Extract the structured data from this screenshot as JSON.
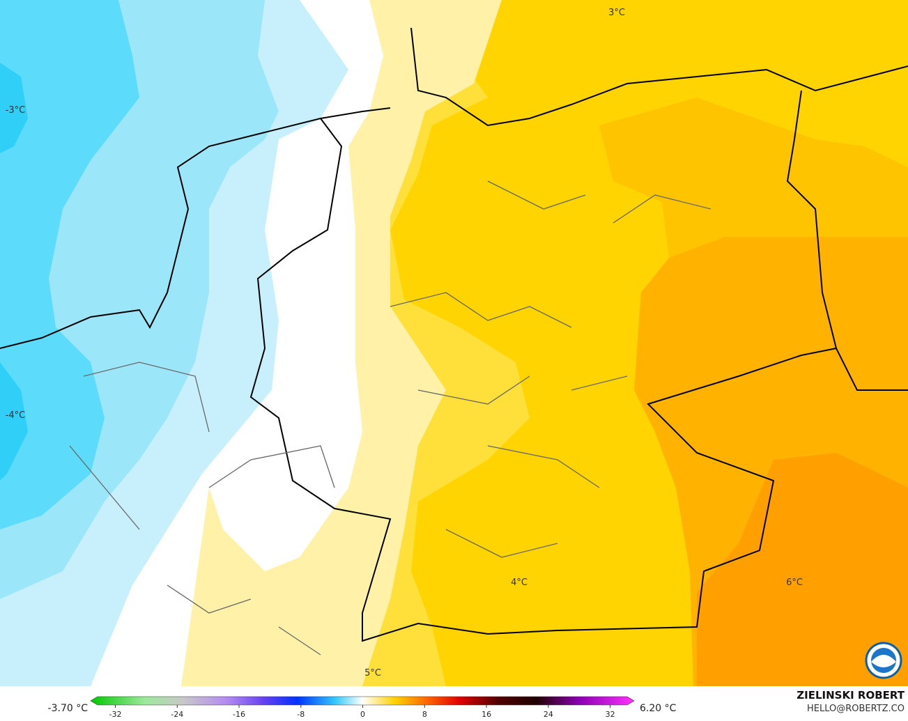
{
  "map": {
    "contour_labels": [
      "-3°C",
      "-4°C",
      "3°C",
      "4°C",
      "6°C",
      "5°C"
    ]
  },
  "colorbar": {
    "min_label": "-3.70 °C",
    "max_label": "6.20 °C",
    "range": [
      -35.2,
      35.1
    ],
    "ticks": [
      -32,
      -24,
      -16,
      -8,
      0,
      8,
      16,
      24,
      32
    ]
  },
  "credits": {
    "name": "ZIELINSKI ROBERT",
    "site": "HELLO@ROBERTZ.CO"
  }
}
